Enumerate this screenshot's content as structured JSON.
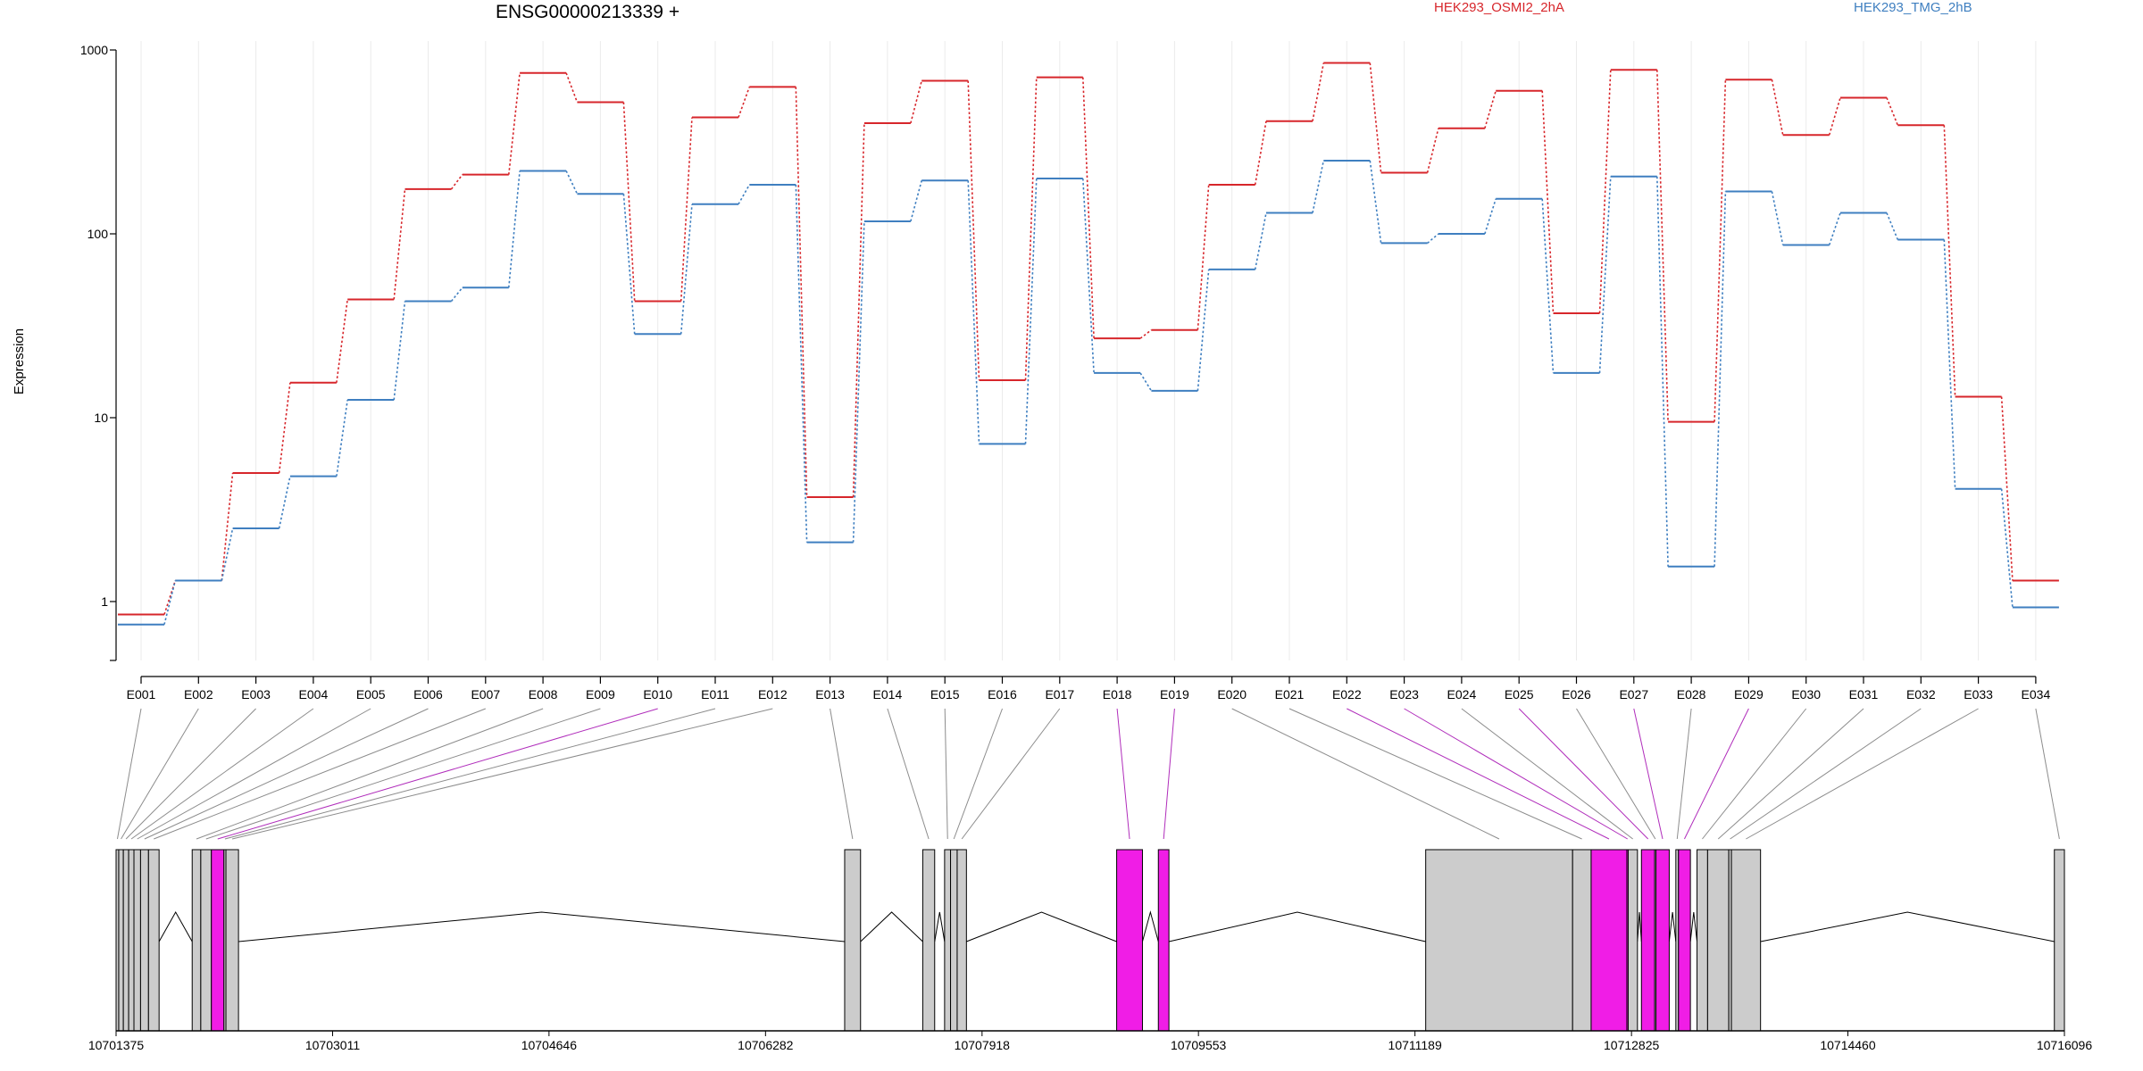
{
  "chart_data": {
    "type": "line",
    "title": "ENSG00000213339 +",
    "ylabel": "Expression",
    "xlabel": "",
    "yscale": "log",
    "ylim": [
      0.5,
      1000
    ],
    "yticks": [
      1,
      10,
      100,
      1000
    ],
    "ytick_labels": [
      "1",
      "10",
      "100",
      "1000"
    ],
    "grid": "vertical, light",
    "legend_position": "top-right",
    "categories": [
      "E001",
      "E002",
      "E003",
      "E004",
      "E005",
      "E006",
      "E007",
      "E008",
      "E009",
      "E010",
      "E011",
      "E012",
      "E013",
      "E014",
      "E015",
      "E016",
      "E017",
      "E018",
      "E019",
      "E020",
      "E021",
      "E022",
      "E023",
      "E024",
      "E025",
      "E026",
      "E027",
      "E028",
      "E029",
      "E030",
      "E031",
      "E032",
      "E033",
      "E034"
    ],
    "series": [
      {
        "name": "HEK293_OSMI2_2hA",
        "color": "#d7262b",
        "values": [
          0.85,
          1.3,
          5,
          15.5,
          44,
          175,
          210,
          750,
          520,
          43,
          430,
          630,
          3.7,
          400,
          680,
          16,
          710,
          27,
          30,
          185,
          410,
          850,
          215,
          375,
          600,
          37,
          780,
          9.5,
          690,
          345,
          550,
          390,
          13,
          1.3
        ]
      },
      {
        "name": "HEK293_TMG_2hB",
        "color": "#3f7fc0",
        "values": [
          0.75,
          1.3,
          2.5,
          4.8,
          12.5,
          43,
          51,
          220,
          165,
          28.5,
          145,
          185,
          2.1,
          117,
          195,
          7.2,
          200,
          17.5,
          14,
          64,
          130,
          250,
          89,
          100,
          155,
          17.5,
          205,
          1.55,
          170,
          87,
          130,
          93,
          4.1,
          0.93
        ]
      }
    ],
    "hidden_ticks": [],
    "highlight_color": "#f01de6",
    "exon_color": "#cccccc",
    "gene_model": {
      "coord_labels": [
        "10701375",
        "10703011",
        "10704646",
        "10706282",
        "10707918",
        "10709553",
        "10711189",
        "10712825",
        "10714460",
        "10716096"
      ],
      "exons": [
        {
          "id": "E001",
          "start": 10701375,
          "end": 10701395,
          "highlight": false
        },
        {
          "id": "E002",
          "start": 10701395,
          "end": 10701430,
          "highlight": false
        },
        {
          "id": "E003",
          "start": 10701430,
          "end": 10701470,
          "highlight": false
        },
        {
          "id": "E004",
          "start": 10701470,
          "end": 10701510,
          "highlight": false
        },
        {
          "id": "E005",
          "start": 10701510,
          "end": 10701560,
          "highlight": false
        },
        {
          "id": "E006",
          "start": 10701560,
          "end": 10701620,
          "highlight": false
        },
        {
          "id": "E007",
          "start": 10701620,
          "end": 10701700,
          "highlight": false
        },
        {
          "id": "E008",
          "start": 10701950,
          "end": 10702015,
          "highlight": false
        },
        {
          "id": "E009",
          "start": 10702015,
          "end": 10702095,
          "highlight": false
        },
        {
          "id": "E010",
          "start": 10702095,
          "end": 10702190,
          "highlight": true
        },
        {
          "id": "E011",
          "start": 10702190,
          "end": 10702205,
          "highlight": false
        },
        {
          "id": "E012",
          "start": 10702205,
          "end": 10702300,
          "highlight": false
        },
        {
          "id": "E013",
          "start": 10706880,
          "end": 10707000,
          "highlight": false
        },
        {
          "id": "E014",
          "start": 10707470,
          "end": 10707560,
          "highlight": false
        },
        {
          "id": "E015",
          "start": 10707635,
          "end": 10707680,
          "highlight": false
        },
        {
          "id": "E016",
          "start": 10707680,
          "end": 10707730,
          "highlight": false
        },
        {
          "id": "E017",
          "start": 10707730,
          "end": 10707800,
          "highlight": false
        },
        {
          "id": "E018",
          "start": 10708935,
          "end": 10709130,
          "highlight": true
        },
        {
          "id": "E019",
          "start": 10709250,
          "end": 10709330,
          "highlight": true
        },
        {
          "id": "E020",
          "start": 10711270,
          "end": 10712380,
          "highlight": false
        },
        {
          "id": "E021",
          "start": 10712380,
          "end": 10712520,
          "highlight": false
        },
        {
          "id": "E022",
          "start": 10712520,
          "end": 10712790,
          "highlight": true
        },
        {
          "id": "E023",
          "start": 10712790,
          "end": 10712800,
          "highlight": true
        },
        {
          "id": "E024",
          "start": 10712800,
          "end": 10712870,
          "highlight": false
        },
        {
          "id": "E025",
          "start": 10712900,
          "end": 10713000,
          "highlight": true
        },
        {
          "id": "E026",
          "start": 10713000,
          "end": 10713010,
          "highlight": false
        },
        {
          "id": "E027",
          "start": 10713010,
          "end": 10713110,
          "highlight": true
        },
        {
          "id": "E028",
          "start": 10713160,
          "end": 10713180,
          "highlight": false
        },
        {
          "id": "E029",
          "start": 10713180,
          "end": 10713270,
          "highlight": true
        },
        {
          "id": "E030",
          "start": 10713320,
          "end": 10713400,
          "highlight": false
        },
        {
          "id": "E031",
          "start": 10713400,
          "end": 10713560,
          "highlight": false
        },
        {
          "id": "E032",
          "start": 10713560,
          "end": 10713580,
          "highlight": false
        },
        {
          "id": "E033",
          "start": 10713580,
          "end": 10713800,
          "highlight": false
        },
        {
          "id": "E034",
          "start": 10716020,
          "end": 10716096,
          "highlight": false
        }
      ]
    }
  }
}
